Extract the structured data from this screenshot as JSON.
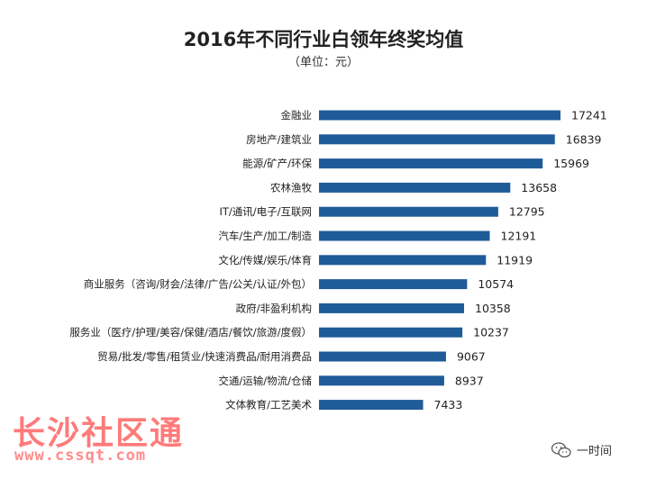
{
  "chart_data": {
    "type": "bar",
    "orientation": "horizontal",
    "title": "2016年不同行业白领年终奖均值",
    "subtitle": "（单位：元）",
    "categories": [
      "金融业",
      "房地产/建筑业",
      "能源/矿产/环保",
      "农林渔牧",
      "IT/通讯/电子/互联网",
      "汽车/生产/加工/制造",
      "文化/传媒/娱乐/体育",
      "商业服务（咨询/财会/法律/广告/公关/认证/外包）",
      "政府/非盈利机构",
      "服务业（医疗/护理/美容/保健/酒店/餐饮/旅游/度假）",
      "贸易/批发/零售/租赁业/快速消费品/耐用消费品",
      "交通/运输/物流/仓储",
      "文体教育/工艺美术"
    ],
    "values": [
      17241,
      16839,
      15969,
      13658,
      12795,
      12191,
      11919,
      10574,
      10358,
      10237,
      9067,
      8937,
      7433
    ],
    "xlim": [
      0,
      20000
    ],
    "bar_color": "#1f5b99",
    "grid": false,
    "legend": "none"
  },
  "watermark": {
    "name": "长沙社区通",
    "url": "www.cssqt.com"
  },
  "source": {
    "label": "一时间",
    "icon": "wechat-icon"
  }
}
